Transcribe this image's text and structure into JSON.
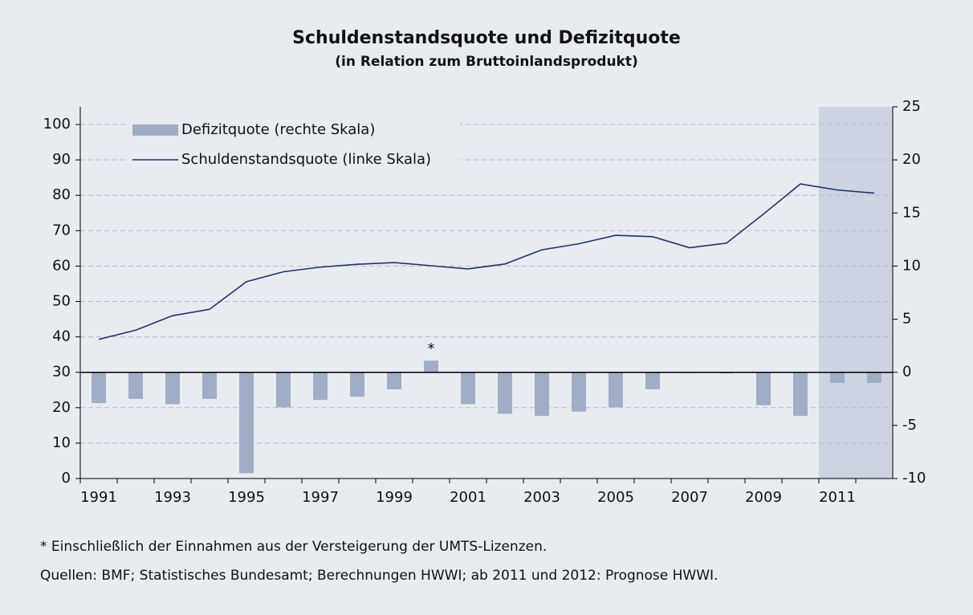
{
  "chart_data": {
    "type": "bar",
    "title": "Schuldenstandsquote und Defizitquote",
    "subtitle": "(in Relation zum Bruttoinlandsprodukt)",
    "categories": [
      "1991",
      null,
      "1993",
      null,
      "1995",
      null,
      "1997",
      null,
      "1999",
      null,
      "2001",
      null,
      "2003",
      null,
      "2005",
      null,
      "2007",
      null,
      "2009",
      null,
      "2011",
      null
    ],
    "series": [
      {
        "name": "Defizitquote (rechte Skala)",
        "type": "bar",
        "axis": "y2",
        "color": "#a1adc4",
        "values": [
          -2.9,
          -2.5,
          -3.0,
          -2.5,
          -9.5,
          -3.3,
          -2.6,
          -2.3,
          -1.6,
          1.1,
          -3.0,
          -3.9,
          -4.1,
          -3.7,
          -3.3,
          -1.6,
          0.0,
          -0.1,
          -3.1,
          -4.1,
          -1.0,
          -1.0
        ]
      },
      {
        "name": "Schuldenstandsquote (linke Skala)",
        "type": "line",
        "axis": "y",
        "color": "#1f3468",
        "values": [
          39.3,
          41.9,
          46.0,
          47.8,
          55.6,
          58.4,
          59.7,
          60.5,
          61.0,
          60.1,
          59.2,
          60.6,
          64.6,
          66.3,
          68.7,
          68.3,
          65.2,
          66.5,
          74.7,
          83.2,
          81.5,
          80.6
        ]
      }
    ],
    "ylim": [
      0,
      105
    ],
    "yticks": [
      0,
      10,
      20,
      30,
      40,
      50,
      60,
      70,
      80,
      90,
      100
    ],
    "y2lim": [
      -10,
      25
    ],
    "y2ticks": [
      -10,
      -5,
      0,
      5,
      10,
      15,
      20,
      25
    ],
    "grid": true,
    "legend": "top-left",
    "annotation": "*",
    "footnote": "* Einschließlich der Einnahmen aus der Versteigerung der UMTS-Lizenzen.",
    "source": "Quellen: BMF; Statistisches Bundesamt; Berechnungen HWWI; ab 2011 und 2012: Prognose HWWI."
  }
}
